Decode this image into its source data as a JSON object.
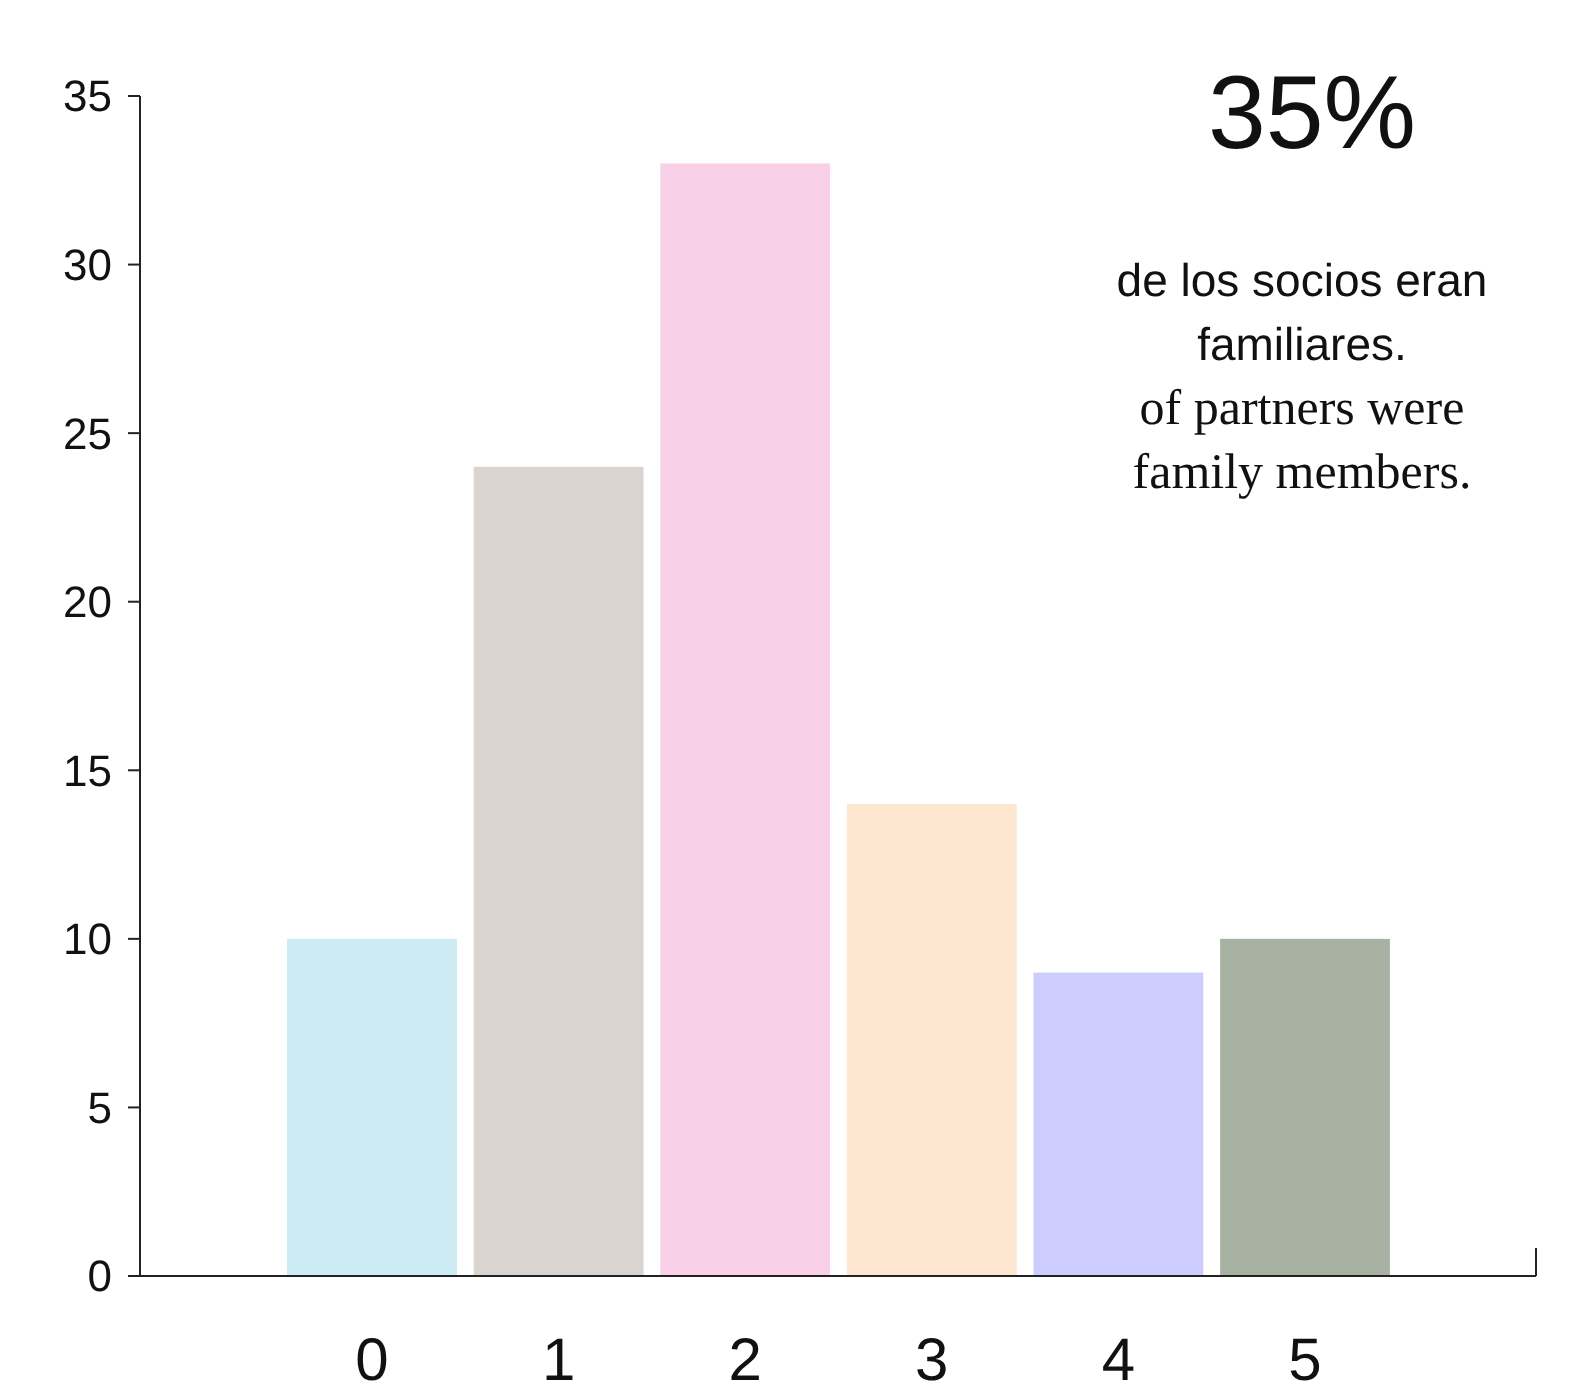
{
  "chart_data": {
    "type": "bar",
    "title": "35%",
    "annotations": [
      "de los socios eran familiares.",
      "of partners were family members."
    ],
    "categories": [
      "0",
      "1",
      "2",
      "3",
      "4",
      "5"
    ],
    "values": [
      10,
      24,
      33,
      14,
      9,
      10
    ],
    "colors": [
      "#cdebf3",
      "#d9d4cf",
      "#f8d0e8",
      "#fce6cf",
      "#ccccfe",
      "#a8b2a2"
    ],
    "ylim": [
      0,
      35
    ],
    "yticks": [
      0,
      5,
      10,
      15,
      20,
      25,
      30,
      35
    ],
    "grid": false
  }
}
